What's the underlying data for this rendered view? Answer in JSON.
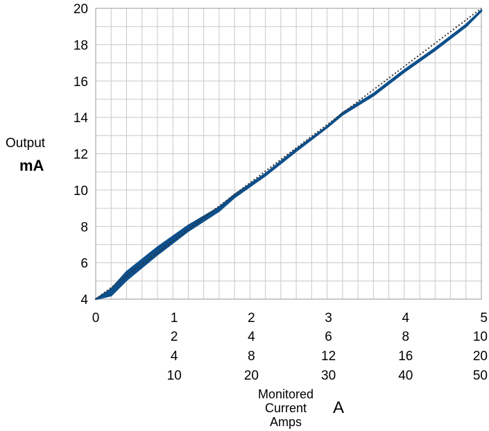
{
  "chart_data": {
    "type": "line",
    "ylabel": [
      "Output",
      "mA"
    ],
    "xlabel": [
      "Monitored",
      "Current",
      "Amps"
    ],
    "xunit": "A",
    "ylim": [
      4,
      20
    ],
    "yticks": [
      "4",
      "6",
      "8",
      "10",
      "12",
      "14",
      "16",
      "18",
      "20"
    ],
    "xlim": [
      0,
      5
    ],
    "xtick_zero": "0",
    "xtick_columns": [
      {
        "pos": 1,
        "labels": [
          "1",
          "2",
          "4",
          "10"
        ]
      },
      {
        "pos": 2,
        "labels": [
          "2",
          "4",
          "8",
          "20"
        ]
      },
      {
        "pos": 3,
        "labels": [
          "3",
          "6",
          "12",
          "30"
        ]
      },
      {
        "pos": 4,
        "labels": [
          "4",
          "8",
          "16",
          "40"
        ]
      },
      {
        "pos": 5,
        "labels": [
          "5",
          "10",
          "20",
          "50"
        ]
      }
    ],
    "grid": true,
    "grid_minor_x_step": 0.2,
    "grid_minor_y_step": 1,
    "series": [
      {
        "style": "measured-band",
        "color": "#0d4f8b",
        "x": [
          0,
          0.2,
          0.4,
          0.8,
          1.2,
          1.6,
          1.8,
          2.2,
          2.6,
          3.0,
          3.2,
          3.6,
          4.0,
          4.4,
          4.8,
          5.0
        ],
        "y_upper": [
          4.0,
          4.55,
          5.5,
          6.85,
          8.05,
          9.05,
          9.75,
          10.9,
          12.25,
          13.5,
          14.25,
          15.3,
          16.6,
          17.8,
          19.1,
          19.9
        ],
        "y_lower": [
          4.0,
          4.2,
          5.05,
          6.45,
          7.75,
          8.85,
          9.6,
          10.8,
          12.15,
          13.45,
          14.15,
          15.2,
          16.5,
          17.7,
          19.0,
          19.85
        ]
      },
      {
        "style": "ideal-dotted",
        "color": "#333333",
        "x": [
          0,
          5
        ],
        "y": [
          4,
          20
        ]
      }
    ]
  }
}
